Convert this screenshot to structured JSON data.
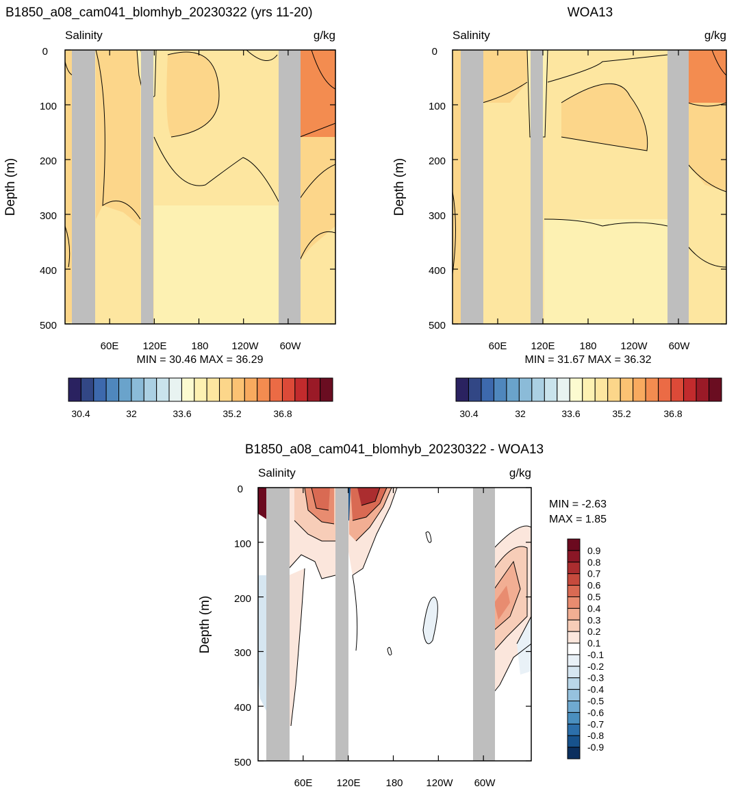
{
  "colors": {
    "land": "#bebebe",
    "contour": "#000000",
    "salinity_palette": [
      "#2a2260",
      "#324785",
      "#3d69ad",
      "#4f87bd",
      "#6aa3cb",
      "#8bbbd8",
      "#abd0e3",
      "#c9e3ec",
      "#e8f3f1",
      "#fcfbd0",
      "#fdf1b2",
      "#fde6a0",
      "#fcd68a",
      "#fbc273",
      "#f8aa5f",
      "#f38c50",
      "#eb6b45",
      "#dc4a38",
      "#c22b2d",
      "#9a1a27",
      "#6a0d21"
    ],
    "diff_palette": [
      "#0b2f5e",
      "#17528c",
      "#2c6faa",
      "#4a8fbf",
      "#6fa9d0",
      "#96c2de",
      "#b9d7e9",
      "#d6e6f1",
      "#e9f1f7",
      "#ffffff",
      "#fbe6dc",
      "#f7cdb8",
      "#f2ae93",
      "#e88c70",
      "#d96a53",
      "#c64a3d",
      "#ab2d2f",
      "#8a1726",
      "#6b0a1f"
    ]
  },
  "panels": [
    {
      "id": "model",
      "title": "B1850_a08_cam041_blomhyb_20230322 (yrs 11-20)",
      "left_label": "Salinity",
      "right_label": "g/kg",
      "ylabel": "Depth (m)",
      "yticks": [
        "0",
        "100",
        "200",
        "300",
        "400",
        "500"
      ],
      "xticks": [
        "60E",
        "120E",
        "180",
        "120W",
        "60W"
      ],
      "minmax": "MIN =  30.46  MAX =  36.29",
      "colorbar_labels": [
        "30.4",
        "32",
        "33.6",
        "35.2",
        "36.8"
      ]
    },
    {
      "id": "obs",
      "title": "WOA13",
      "left_label": "Salinity",
      "right_label": "g/kg",
      "ylabel": "Depth (m)",
      "yticks": [
        "0",
        "100",
        "200",
        "300",
        "400",
        "500"
      ],
      "xticks": [
        "60E",
        "120E",
        "180",
        "120W",
        "60W"
      ],
      "minmax": "MIN =  31.67  MAX =  36.32",
      "colorbar_labels": [
        "30.4",
        "32",
        "33.6",
        "35.2",
        "36.8"
      ]
    },
    {
      "id": "diff",
      "title": "B1850_a08_cam041_blomhyb_20230322 - WOA13",
      "left_label": "Salinity",
      "right_label": "g/kg",
      "ylabel": "Depth (m)",
      "yticks": [
        "0",
        "100",
        "200",
        "300",
        "400",
        "500"
      ],
      "xticks": [
        "60E",
        "120E",
        "180",
        "120W",
        "60W"
      ],
      "min_text": "MIN =  -2.63",
      "max_text": "MAX =   1.85",
      "colorbar_labels": [
        "0.9",
        "0.8",
        "0.7",
        "0.6",
        "0.5",
        "0.4",
        "0.3",
        "0.2",
        "0.1",
        "-0.1",
        "-0.2",
        "-0.3",
        "-0.4",
        "-0.5",
        "-0.6",
        "-0.7",
        "-0.8",
        "-0.9"
      ]
    }
  ],
  "chart_data": [
    {
      "type": "heatmap",
      "title": "B1850_a08_cam041_blomhyb_20230322 (yrs 11-20)",
      "variable": "Salinity",
      "units": "g/kg",
      "ylabel": "Depth (m)",
      "ylim": [
        500,
        0
      ],
      "x_ticks": [
        "60E",
        "120E",
        "180",
        "120W",
        "60W"
      ],
      "y_ticks": [
        0,
        100,
        200,
        300,
        400,
        500
      ],
      "min": 30.46,
      "max": 36.29,
      "contour_levels": [
        30.4,
        30.8,
        31.2,
        31.6,
        32,
        32.4,
        32.8,
        33.2,
        33.6,
        34,
        34.4,
        34.8,
        35.2,
        35.6,
        36,
        36.4,
        36.8,
        37.2,
        37.6,
        38
      ]
    },
    {
      "type": "heatmap",
      "title": "WOA13",
      "variable": "Salinity",
      "units": "g/kg",
      "ylabel": "Depth (m)",
      "ylim": [
        500,
        0
      ],
      "x_ticks": [
        "60E",
        "120E",
        "180",
        "120W",
        "60W"
      ],
      "y_ticks": [
        0,
        100,
        200,
        300,
        400,
        500
      ],
      "min": 31.67,
      "max": 36.32,
      "contour_levels": [
        30.4,
        30.8,
        31.2,
        31.6,
        32,
        32.4,
        32.8,
        33.2,
        33.6,
        34,
        34.4,
        34.8,
        35.2,
        35.6,
        36,
        36.4,
        36.8,
        37.2,
        37.6,
        38
      ]
    },
    {
      "type": "heatmap",
      "title": "B1850_a08_cam041_blomhyb_20230322 - WOA13",
      "variable": "Salinity",
      "units": "g/kg",
      "ylabel": "Depth (m)",
      "ylim": [
        500,
        0
      ],
      "x_ticks": [
        "60E",
        "120E",
        "180",
        "120W",
        "60W"
      ],
      "y_ticks": [
        0,
        100,
        200,
        300,
        400,
        500
      ],
      "min": -2.63,
      "max": 1.85,
      "contour_levels": [
        -0.9,
        -0.8,
        -0.7,
        -0.6,
        -0.5,
        -0.4,
        -0.3,
        -0.2,
        -0.1,
        0.1,
        0.2,
        0.3,
        0.4,
        0.5,
        0.6,
        0.7,
        0.8,
        0.9
      ]
    }
  ]
}
